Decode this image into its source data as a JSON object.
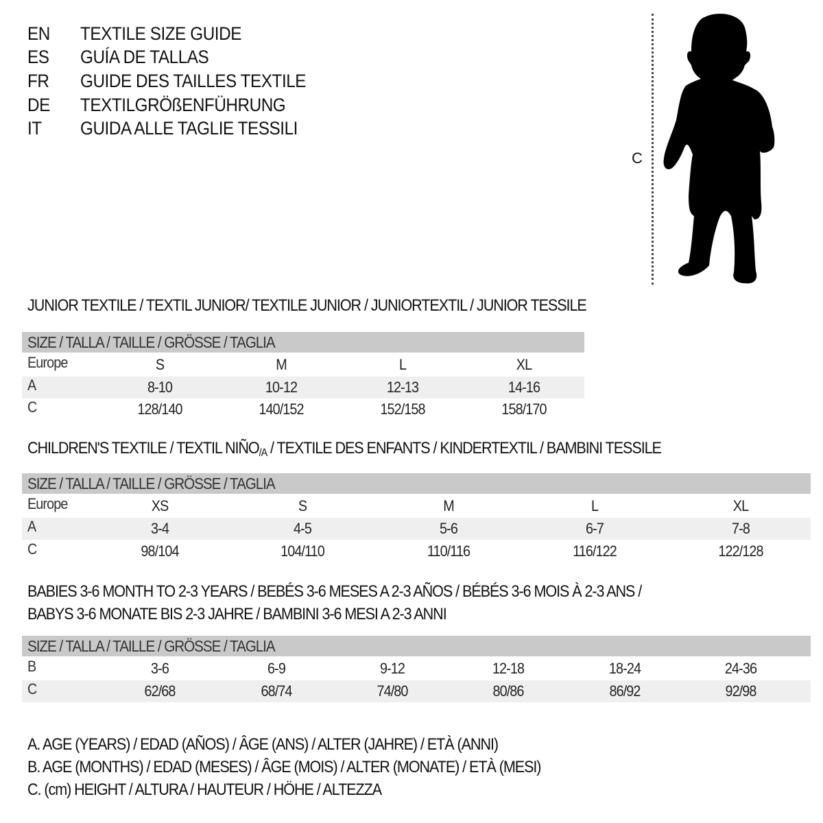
{
  "titles": [
    {
      "code": "EN",
      "text": "TEXTILE SIZE GUIDE"
    },
    {
      "code": "ES",
      "text": "GUÍA DE TALLAS"
    },
    {
      "code": "FR",
      "text": "GUIDE DES TAILLES TEXTILE"
    },
    {
      "code": "DE",
      "text": "TEXTILGRÖßENFÜHRUNG"
    },
    {
      "code": "IT",
      "text": "GUIDA ALLE TAGLIE TESSILI"
    }
  ],
  "figure": {
    "measure_label": "C",
    "icon": "child-silhouette-icon"
  },
  "colors": {
    "header_bg": "#c9c9c9",
    "alt_row_bg": "#efefef"
  },
  "junior": {
    "heading": "JUNIOR TEXTILE / TEXTIL JUNIOR/ TEXTILE JUNIOR / JUNIORTEXTIL / JUNIOR TESSILE",
    "header": "SIZE / TALLA / TAILLE / GRÖSSE / TAGLIA",
    "rows": [
      {
        "label": "Europe",
        "values": [
          "S",
          "M",
          "L",
          "XL"
        ]
      },
      {
        "label": "A",
        "values": [
          "8-10",
          "10-12",
          "12-13",
          "14-16"
        ]
      },
      {
        "label": "C",
        "values": [
          "128/140",
          "140/152",
          "152/158",
          "158/170"
        ]
      }
    ]
  },
  "children": {
    "heading_pre": "CHILDREN'S TEXTILE / TEXTIL NIÑO",
    "heading_sub": "/A",
    "heading_post": " / TEXTILE DES ENFANTS / KINDERTEXTIL / BAMBINI TESSILE",
    "header": "SIZE / TALLA / TAILLE / GRÖSSE / TAGLIA",
    "rows": [
      {
        "label": "Europe",
        "values": [
          "XS",
          "S",
          "M",
          "L",
          "XL"
        ]
      },
      {
        "label": "A",
        "values": [
          "3-4",
          "4-5",
          "5-6",
          "6-7",
          "7-8"
        ]
      },
      {
        "label": "C",
        "values": [
          "98/104",
          "104/110",
          "110/116",
          "116/122",
          "122/128"
        ]
      }
    ]
  },
  "babies": {
    "heading_line1": "BABIES 3-6 MONTH TO 2-3 YEARS / BEBÉS 3-6 MESES A 2-3 AÑOS / BÉBÉS 3-6 MOIS À 2-3 ANS /",
    "heading_line2": "BABYS 3-6 MONATE BIS 2-3 JAHRE / BAMBINI 3-6 MESI A 2-3 ANNI",
    "header": "SIZE / TALLA / TAILLE / GRÖSSE / TAGLIA",
    "rows": [
      {
        "label": "B",
        "values": [
          "3-6",
          "6-9",
          "9-12",
          "12-18",
          "18-24",
          "24-36"
        ]
      },
      {
        "label": "C",
        "values": [
          "62/68",
          "68/74",
          "74/80",
          "80/86",
          "86/92",
          "92/98"
        ]
      }
    ]
  },
  "legend": [
    "A. AGE (YEARS) / EDAD (AÑOS) / ÂGE (ANS) / ALTER (JAHRE) / ETÀ (ANNI)",
    "B. AGE (MONTHS) / EDAD (MESES) / ÂGE (MOIS) / ALTER (MONATE) / ETÀ (MESI)",
    "C. (cm) HEIGHT / ALTURA / HAUTEUR / HÖHE / ALTEZZA"
  ]
}
